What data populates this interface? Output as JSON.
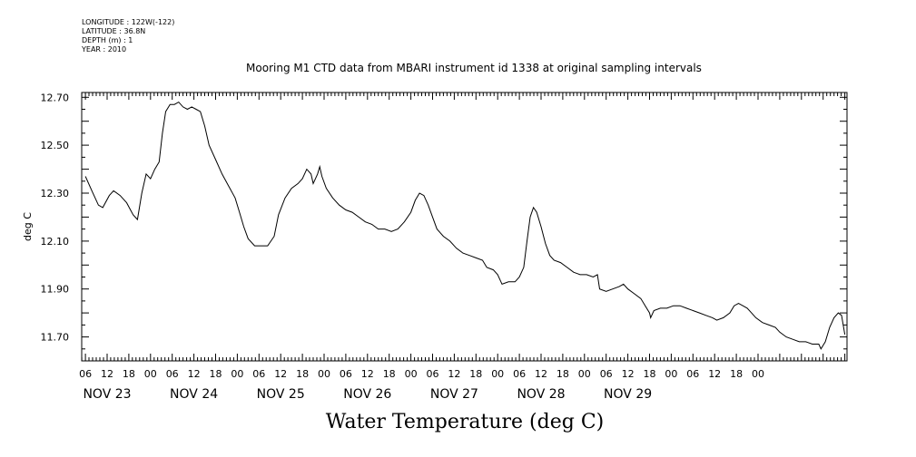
{
  "header": {
    "lines": [
      "LONGITUDE : 122W(-122)",
      "LATITUDE : 36.8N",
      "DEPTH (m) : 1",
      "YEAR : 2010"
    ]
  },
  "chart_data": {
    "type": "line",
    "title": "Mooring M1 CTD data from MBARI instrument id 1338 at original sampling intervals",
    "xlabel": "Water Temperature (deg C)",
    "ylabel": "deg C",
    "ylim": [
      11.6,
      12.72
    ],
    "yticks": [
      "12.70",
      "12.50",
      "12.30",
      "12.10",
      "11.90",
      "11.70"
    ],
    "xlim": [
      1.0,
      36.0
    ],
    "hour_ticks": [
      "06",
      "12",
      "18",
      "00",
      "06",
      "12",
      "18",
      "00",
      "06",
      "12",
      "18",
      "00",
      "06",
      "12",
      "18",
      "00",
      "06",
      "12",
      "18",
      "00",
      "06",
      "12",
      "18",
      "00",
      "06",
      "12",
      "18",
      "00",
      "06",
      "12",
      "18",
      "00"
    ],
    "day_labels": [
      "NOV 23",
      "NOV 24",
      "NOV 25",
      "NOV 26",
      "NOV 27",
      "NOV 28",
      "NOV 29"
    ],
    "x_unit_note": "x in units of 6 hours since NOV 23 00:00 is NOT printed; values listed as [period, temp]",
    "series": [
      {
        "values": [
          [
            1.0,
            12.37
          ],
          [
            1.3,
            12.31
          ],
          [
            1.6,
            12.25
          ],
          [
            1.8,
            12.24
          ],
          [
            2.1,
            12.29
          ],
          [
            2.3,
            12.31
          ],
          [
            2.6,
            12.29
          ],
          [
            2.9,
            12.26
          ],
          [
            3.2,
            12.21
          ],
          [
            3.4,
            12.19
          ],
          [
            3.6,
            12.3
          ],
          [
            3.8,
            12.38
          ],
          [
            4.0,
            12.36
          ],
          [
            4.2,
            12.4
          ],
          [
            4.4,
            12.43
          ],
          [
            4.55,
            12.55
          ],
          [
            4.7,
            12.64
          ],
          [
            4.9,
            12.67
          ],
          [
            5.1,
            12.67
          ],
          [
            5.3,
            12.68
          ],
          [
            5.5,
            12.66
          ],
          [
            5.7,
            12.65
          ],
          [
            5.9,
            12.66
          ],
          [
            6.1,
            12.65
          ],
          [
            6.3,
            12.64
          ],
          [
            6.5,
            12.58
          ],
          [
            6.7,
            12.5
          ],
          [
            7.0,
            12.44
          ],
          [
            7.3,
            12.38
          ],
          [
            7.6,
            12.33
          ],
          [
            7.9,
            12.28
          ],
          [
            8.1,
            12.22
          ],
          [
            8.3,
            12.16
          ],
          [
            8.5,
            12.11
          ],
          [
            8.8,
            12.08
          ],
          [
            9.1,
            12.08
          ],
          [
            9.4,
            12.08
          ],
          [
            9.7,
            12.12
          ],
          [
            9.9,
            12.21
          ],
          [
            10.2,
            12.28
          ],
          [
            10.5,
            12.32
          ],
          [
            10.8,
            12.34
          ],
          [
            11.0,
            12.36
          ],
          [
            11.2,
            12.4
          ],
          [
            11.4,
            12.38
          ],
          [
            11.5,
            12.34
          ],
          [
            11.7,
            12.38
          ],
          [
            11.8,
            12.41
          ],
          [
            11.9,
            12.37
          ],
          [
            12.1,
            12.32
          ],
          [
            12.4,
            12.28
          ],
          [
            12.7,
            12.25
          ],
          [
            13.0,
            12.23
          ],
          [
            13.3,
            12.22
          ],
          [
            13.6,
            12.2
          ],
          [
            13.9,
            12.18
          ],
          [
            14.2,
            12.17
          ],
          [
            14.5,
            12.15
          ],
          [
            14.8,
            12.15
          ],
          [
            15.1,
            12.14
          ],
          [
            15.4,
            12.15
          ],
          [
            15.7,
            12.18
          ],
          [
            16.0,
            12.22
          ],
          [
            16.2,
            12.27
          ],
          [
            16.4,
            12.3
          ],
          [
            16.6,
            12.29
          ],
          [
            16.8,
            12.25
          ],
          [
            17.0,
            12.2
          ],
          [
            17.2,
            12.15
          ],
          [
            17.5,
            12.12
          ],
          [
            17.8,
            12.1
          ],
          [
            18.1,
            12.07
          ],
          [
            18.4,
            12.05
          ],
          [
            18.7,
            12.04
          ],
          [
            19.0,
            12.03
          ],
          [
            19.3,
            12.02
          ],
          [
            19.5,
            11.99
          ],
          [
            19.8,
            11.98
          ],
          [
            20.0,
            11.96
          ],
          [
            20.2,
            11.92
          ],
          [
            20.5,
            11.93
          ],
          [
            20.8,
            11.93
          ],
          [
            21.0,
            11.95
          ],
          [
            21.2,
            11.99
          ],
          [
            21.35,
            12.1
          ],
          [
            21.5,
            12.2
          ],
          [
            21.65,
            12.24
          ],
          [
            21.8,
            12.22
          ],
          [
            22.0,
            12.16
          ],
          [
            22.2,
            12.09
          ],
          [
            22.4,
            12.04
          ],
          [
            22.6,
            12.02
          ],
          [
            22.9,
            12.01
          ],
          [
            23.2,
            11.99
          ],
          [
            23.5,
            11.97
          ],
          [
            23.8,
            11.96
          ],
          [
            24.1,
            11.96
          ],
          [
            24.4,
            11.95
          ],
          [
            24.6,
            11.96
          ],
          [
            24.7,
            11.9
          ],
          [
            25.0,
            11.89
          ],
          [
            25.3,
            11.9
          ],
          [
            25.6,
            11.91
          ],
          [
            25.8,
            11.92
          ],
          [
            26.0,
            11.9
          ],
          [
            26.3,
            11.88
          ],
          [
            26.6,
            11.86
          ],
          [
            26.8,
            11.83
          ],
          [
            27.0,
            11.8
          ],
          [
            27.05,
            11.78
          ],
          [
            27.2,
            11.81
          ],
          [
            27.5,
            11.82
          ],
          [
            27.8,
            11.82
          ],
          [
            28.1,
            11.83
          ],
          [
            28.4,
            11.83
          ],
          [
            28.7,
            11.82
          ],
          [
            29.0,
            11.81
          ],
          [
            29.3,
            11.8
          ],
          [
            29.6,
            11.79
          ],
          [
            29.9,
            11.78
          ],
          [
            30.1,
            11.77
          ],
          [
            30.4,
            11.78
          ],
          [
            30.7,
            11.8
          ],
          [
            30.9,
            11.83
          ],
          [
            31.1,
            11.84
          ],
          [
            31.3,
            11.83
          ],
          [
            31.5,
            11.82
          ],
          [
            31.7,
            11.8
          ],
          [
            31.9,
            11.78
          ],
          [
            32.2,
            11.76
          ],
          [
            32.5,
            11.75
          ],
          [
            32.8,
            11.74
          ],
          [
            33.0,
            11.72
          ],
          [
            33.3,
            11.7
          ],
          [
            33.6,
            11.69
          ],
          [
            33.9,
            11.68
          ],
          [
            34.2,
            11.68
          ],
          [
            34.5,
            11.67
          ],
          [
            34.8,
            11.67
          ],
          [
            34.9,
            11.65
          ],
          [
            35.1,
            11.68
          ],
          [
            35.3,
            11.74
          ],
          [
            35.5,
            11.78
          ],
          [
            35.7,
            11.8
          ],
          [
            35.85,
            11.79
          ],
          [
            36.0,
            11.71
          ]
        ]
      }
    ]
  }
}
